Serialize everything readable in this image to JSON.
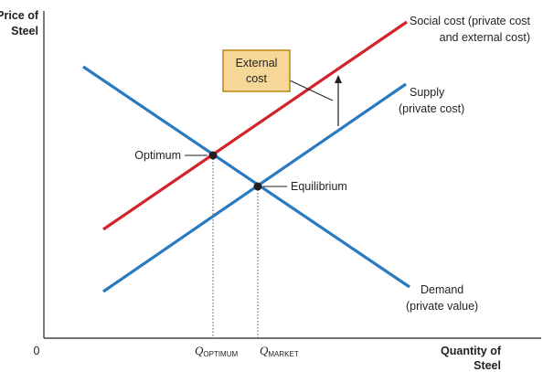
{
  "axes": {
    "y_label_line1": "Price of",
    "y_label_line2": "Steel",
    "x_label_line1": "Quantity of",
    "x_label_line2": "Steel",
    "origin": "0"
  },
  "curves": {
    "social_cost": {
      "line1": "Social cost (private cost",
      "line2": "and external cost)",
      "color": "#d2232a"
    },
    "supply": {
      "line1": "Supply",
      "line2": "(private cost)",
      "color": "#2a7ac0"
    },
    "demand": {
      "line1": "Demand",
      "line2": "(private value)",
      "color": "#2a7ac0"
    }
  },
  "external_cost_box": {
    "line1": "External",
    "line2": "cost",
    "fill": "#f5d898",
    "border": "#b8860b"
  },
  "points": {
    "optimum": "Optimum",
    "equilibrium": "Equilibrium"
  },
  "quantities": {
    "optimum": {
      "main": "Q",
      "sub": "OPTIMUM"
    },
    "market": {
      "main": "Q",
      "sub": "MARKET"
    }
  }
}
